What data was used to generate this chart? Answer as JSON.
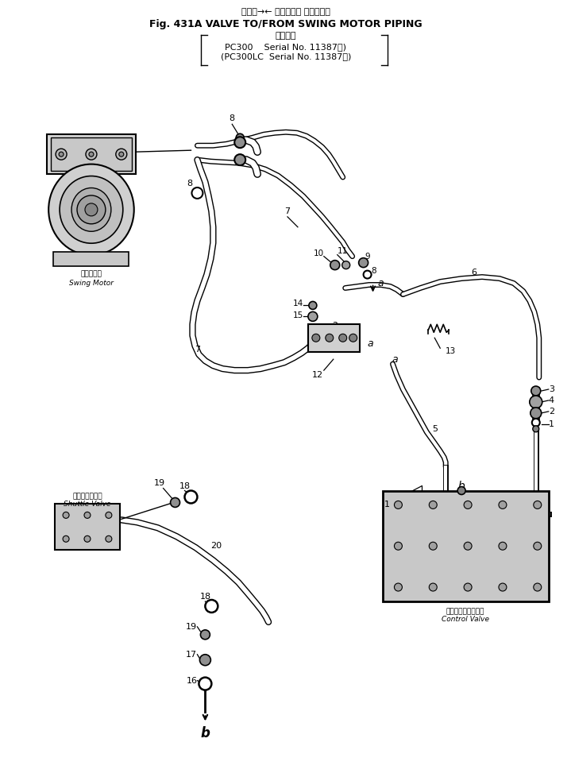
{
  "title_line1": "バルブ→← 旋回モータ パイピング",
  "title_line2": "Fig. 431A VALVE TO/FROM SWING MOTOR PIPING",
  "title_line3": "適用号機",
  "title_line4": "PC300    Serial No. 11387～)",
  "title_line5": "(PC300LC  Serial No. 11387～)",
  "bg_color": "#ffffff",
  "line_color": "#000000",
  "fig_width": 7.19,
  "fig_height": 9.83,
  "dpi": 100
}
